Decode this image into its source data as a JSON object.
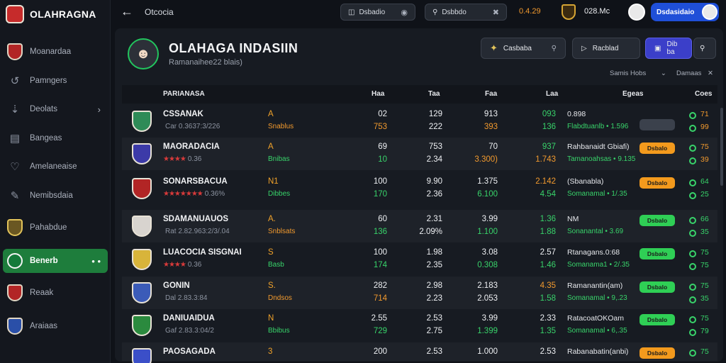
{
  "brand": {
    "name": "OLAHRAGNA"
  },
  "sidebar": {
    "items": [
      {
        "label": "Moanardaa",
        "icon": "red-shield-icon"
      },
      {
        "label": "Pamngers",
        "icon": "history-icon"
      },
      {
        "label": "Deolats",
        "icon": "download-icon",
        "chevron": true
      },
      {
        "label": "Bangeas",
        "icon": "layout-icon"
      },
      {
        "label": "Amelaneaise",
        "icon": "heart-icon"
      },
      {
        "label": "Nemibsdaia",
        "icon": "brush-icon"
      },
      {
        "label": "Pahabdue",
        "icon": "gold-crest-icon"
      },
      {
        "label": "Benerb",
        "icon": "green-crest-icon",
        "active": true,
        "extra": "• •"
      },
      {
        "label": "Reaak",
        "icon": "red-crest-icon"
      },
      {
        "label": "Araiaas",
        "icon": "blue-crest-icon"
      }
    ]
  },
  "topbar": {
    "title": "Otcocia",
    "search1": "Dsbadio",
    "search2": "Dsbbdo",
    "value_a": "0.4.29",
    "value_b": "028.Mc",
    "user_label": "Dsdasidaio"
  },
  "team": {
    "name": "OLAHAGA INDASIIN",
    "subtitle": "Ramanaihee22 blais)"
  },
  "actions": {
    "primary_1": "Casbaba",
    "primary_2": "Racblad",
    "primary_3": "Dib ba"
  },
  "filters": {
    "left": "Samis Hobs",
    "right": "Damaas"
  },
  "table": {
    "headers": [
      "PARIANASA",
      "Haa",
      "Taa",
      "Faa",
      "Laa",
      "Egeas",
      "Coes"
    ],
    "rows": [
      {
        "name": "CSSANAK",
        "sub": "Car 0.3637:3/226",
        "stars": "",
        "pos": "A",
        "pos_sub": "Snablus",
        "pos_sub_color": "orange",
        "c1a": "02",
        "c1b": "753",
        "c1b_color": "orange",
        "c2a": "129",
        "c2b": "222",
        "c3a": "913",
        "c3b": "393",
        "c3b_color": "orange",
        "c4a": "093",
        "c4a_color": "green",
        "c4b": "136",
        "c4b_color": "green",
        "note1": "0.898",
        "note1_color": "green",
        "note2": "Flabdtuanlb • 1.596",
        "badge": "",
        "badge_style": "gray-b",
        "form1": "71",
        "form1_color": "orange",
        "form2": "99",
        "form2_color": "orange",
        "crest": "#2e8b57"
      },
      {
        "name": "MAORADACIA",
        "sub": "0.36",
        "stars": "★★★★",
        "pos": "A",
        "pos_sub": "Bnibas",
        "pos_sub_color": "green",
        "c1a": "69",
        "c1b": "10",
        "c1b_color": "green",
        "c2a": "753",
        "c2b": "2.34",
        "c3a": "70",
        "c3b": "3.300)",
        "c3b_color": "orange",
        "c4a": "937",
        "c4a_color": "green",
        "c4b": "1.743",
        "c4b_color": "orange",
        "note1": "Rahbanaidt Gbiafi)",
        "note1_color": "white",
        "note2": "Tamanoahsas • 9.135",
        "badge": "Dsbalo",
        "badge_style": "orange-b",
        "form1": "75",
        "form1_color": "orange",
        "form2": "39",
        "form2_color": "orange",
        "crest": "#3c3aa8"
      },
      {
        "name": "SONARSBACUA",
        "sub": "0.36%",
        "stars": "★★★★★★★",
        "pos": "N1",
        "pos_sub": "Dibbes",
        "pos_sub_color": "green",
        "c1a": "100",
        "c1b": "170",
        "c1b_color": "green",
        "c2a": "9.90",
        "c2b": "2.36",
        "c3a": "1.375",
        "c3b": "6.100",
        "c3b_color": "green",
        "c4a": "2.142",
        "c4a_color": "orange",
        "c4b": "4.54",
        "c4b_color": "green",
        "note1": "(Sbanabla)",
        "note1_color": "white",
        "note2": "Somanamal • 1/.35",
        "badge": "Dsbalo",
        "badge_style": "orange-b",
        "form1": "64",
        "form1_color": "green",
        "form2": "25",
        "form2_color": "green",
        "crest": "#b22525"
      },
      {
        "name": "SDAMANUAUOS",
        "sub": "Rat 2.82.963:2/3/.04",
        "stars": "",
        "pos": "A.",
        "pos_sub": "Snblsats",
        "pos_sub_color": "orange",
        "c1a": "60",
        "c1b": "136",
        "c1b_color": "green",
        "c2a": "2.31",
        "c2b": "2.09%",
        "c3a": "3.99",
        "c3b": "1.100",
        "c3b_color": "green",
        "c4a": "1.36",
        "c4a_color": "green",
        "c4b": "1.88",
        "c4b_color": "green",
        "note1": "NM",
        "note1_color": "white",
        "note2": "Sonanantal • 3.69",
        "badge": "Dsbalo",
        "badge_style": "green-b",
        "form1": "66",
        "form1_color": "green",
        "form2": "35",
        "form2_color": "green",
        "crest": "#d8d4cf"
      },
      {
        "name": "LUACOCIA SISGNAI",
        "sub": "0.36",
        "stars": "★★★★",
        "pos": "S",
        "pos_sub": "Basb",
        "pos_sub_color": "green",
        "c1a": "100",
        "c1b": "174",
        "c1b_color": "green",
        "c2a": "1.98",
        "c2b": "2.35",
        "c3a": "3.08",
        "c3b": "0.308",
        "c3b_color": "green",
        "c4a": "2.57",
        "c4a_color": "white",
        "c4b": "1.46",
        "c4b_color": "green",
        "note1": "Rtanagans.0:68",
        "note1_color": "white",
        "note2": "Somanama1 • 2/.35",
        "badge": "Dsbalo",
        "badge_style": "green-b",
        "form1": "75",
        "form1_color": "green",
        "form2": "75",
        "form2_color": "green",
        "crest": "#d8b43a"
      },
      {
        "name": "GONIN",
        "sub": "Dal 2.83.3:84",
        "stars": "",
        "pos": "S.",
        "pos_sub": "Dndsos",
        "pos_sub_color": "orange",
        "c1a": "282",
        "c1b": "714",
        "c1b_color": "orange",
        "c2a": "2.98",
        "c2b": "2.23",
        "c3a": "2.183",
        "c3b": "2.053",
        "c3b_color": "white",
        "c4a": "4.35",
        "c4a_color": "orange",
        "c4b": "1.58",
        "c4b_color": "green",
        "note1": "Ramanantin(am)",
        "note1_color": "white",
        "note2": "Somanamal • 9,.23",
        "badge": "Dsbalo",
        "badge_style": "green-b",
        "form1": "75",
        "form1_color": "green",
        "form2": "35",
        "form2_color": "green",
        "crest": "#3b5bb8"
      },
      {
        "name": "DANIUAIDUA",
        "sub": "Gaf 2.83.3:04/2",
        "stars": "",
        "pos": "N",
        "pos_sub": "Bbibus",
        "pos_sub_color": "green",
        "c1a": "2.55",
        "c1b": "729",
        "c1b_color": "green",
        "c2a": "2.53",
        "c2b": "2.75",
        "c3a": "3.99",
        "c3b": "1.399",
        "c3b_color": "green",
        "c4a": "2.33",
        "c4a_color": "white",
        "c4b": "1.35",
        "c4b_color": "green",
        "note1": "RatacoatOKOam",
        "note1_color": "white",
        "note2": "Somanamal • 6,.35",
        "badge": "Dsbalo",
        "badge_style": "green-b",
        "form1": "75",
        "form1_color": "green",
        "form2": "79",
        "form2_color": "green",
        "crest": "#2b8a3e"
      },
      {
        "name": "PAOSAGADA",
        "sub": "",
        "stars": "",
        "pos": "3",
        "pos_sub": "",
        "pos_sub_color": "orange",
        "c1a": "200",
        "c1b": "",
        "c1b_color": "white",
        "c2a": "2.53",
        "c2b": "",
        "c3a": "1.000",
        "c3b": "",
        "c3b_color": "white",
        "c4a": "2.53",
        "c4a_color": "white",
        "c4b": "",
        "c4b_color": "white",
        "note1": "Rabanabatin(anbi)",
        "note1_color": "white",
        "note2": "",
        "badge": "Dsbalo",
        "badge_style": "orange-b",
        "form1": "75",
        "form1_color": "green",
        "form2": "",
        "form2_color": "green",
        "crest": "#3b4fc8"
      }
    ]
  }
}
